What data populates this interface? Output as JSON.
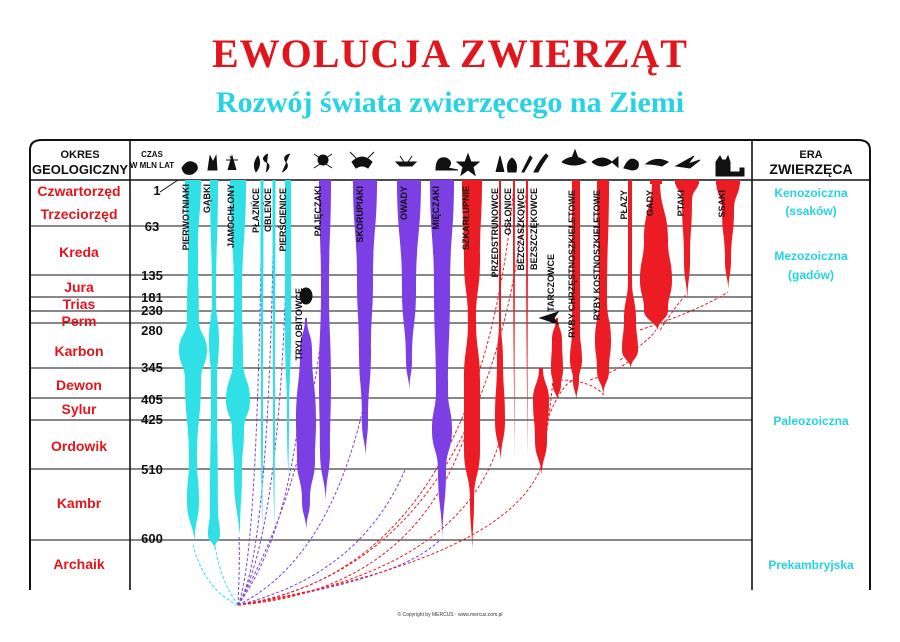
{
  "title": "EWOLUCJA  ZWIERZĄT",
  "subtitle": "Rozwój świata zwierzęcego na Ziemi",
  "headers": {
    "okres_1": "OKRES",
    "okres_2": "GEOLOGICZNY",
    "czas_1": "CZAS",
    "czas_2": "W MLN LAT",
    "era_1": "ERA",
    "era_2": "ZWIERZĘCA"
  },
  "periods": [
    "Czwartorzęd",
    "Trzeciorzęd",
    "Kreda",
    "Jura",
    "Trias",
    "Perm",
    "Karbon",
    "Dewon",
    "Sylur",
    "Ordowik",
    "Kambr",
    "Archaik"
  ],
  "times": [
    "1",
    "63",
    "135",
    "181",
    "230",
    "280",
    "345",
    "405",
    "425",
    "510",
    "600"
  ],
  "eras": {
    "keno_1": "Kenozoiczna",
    "keno_2": "(ssaków)",
    "mezo_1": "Mezozoiczna",
    "mezo_2": "(gadów)",
    "paleo": "Paleozoiczna",
    "prek": "Prekambryjska"
  },
  "lineages": [
    "PIERWOTNIAKI",
    "GĄBKI",
    "JAMOCHŁONY",
    "PŁAZIŃCE",
    "OBLEŃCE",
    "PIERŚCIENICE",
    "TRYLOBITOWCE",
    "PAJĘCZAKI",
    "SKORUPIAKI",
    "OWADY",
    "MIĘCZAKI",
    "SZKARŁUPNIE",
    "PRZEDSTRUNOWCE",
    "OSŁONICE",
    "BEZCZASZKOWCE",
    "BEZSZCZĘKOWCE",
    "TARCZOWCE",
    "RYBY CHRZĘSTNOSZKIELETOWE",
    "RYBY KOSTNOSZKIELETOWE",
    "PŁAZY",
    "GADY",
    "PTAKI",
    "SSAKI"
  ],
  "colors": {
    "cyan": "#2fe0e6",
    "purple": "#7b3fe4",
    "red": "#ec1c24",
    "title_red": "#e3151c",
    "era_cyan": "#25d3e3"
  },
  "footer": "© Copyright by MERCUS · www.mercus.com.pl"
}
